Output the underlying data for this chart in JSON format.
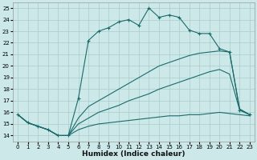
{
  "xlabel": "Humidex (Indice chaleur)",
  "xlim": [
    -0.5,
    23.5
  ],
  "ylim": [
    13.5,
    25.5
  ],
  "xticks": [
    0,
    1,
    2,
    3,
    4,
    5,
    6,
    7,
    8,
    9,
    10,
    11,
    12,
    13,
    14,
    15,
    16,
    17,
    18,
    19,
    20,
    21,
    22,
    23
  ],
  "yticks": [
    14,
    15,
    16,
    17,
    18,
    19,
    20,
    21,
    22,
    23,
    24,
    25
  ],
  "bg_color": "#cce8e8",
  "grid_color": "#aacccc",
  "line_color": "#1a6b6b",
  "line1_x": [
    0,
    1,
    2,
    3,
    4,
    5,
    6,
    7,
    8,
    9,
    10,
    11,
    12,
    13,
    14,
    15,
    16,
    17,
    18,
    19,
    20,
    21,
    22,
    23
  ],
  "line1_y": [
    15.8,
    15.1,
    14.8,
    14.5,
    14.0,
    14.0,
    17.2,
    22.2,
    23.0,
    23.3,
    23.8,
    24.0,
    23.5,
    25.0,
    24.2,
    24.4,
    24.2,
    23.1,
    22.8,
    22.8,
    21.5,
    21.2,
    16.2,
    15.8
  ],
  "line2_x": [
    0,
    1,
    2,
    3,
    4,
    5,
    6,
    7,
    8,
    9,
    10,
    11,
    12,
    13,
    14,
    15,
    16,
    17,
    18,
    19,
    20,
    21,
    22,
    23
  ],
  "line2_y": [
    15.8,
    15.1,
    14.8,
    14.5,
    14.0,
    14.0,
    15.5,
    16.5,
    17.0,
    17.5,
    18.0,
    18.5,
    19.0,
    19.5,
    20.0,
    20.3,
    20.6,
    20.9,
    21.1,
    21.2,
    21.3,
    21.2,
    16.3,
    15.8
  ],
  "line3_x": [
    0,
    1,
    2,
    3,
    4,
    5,
    6,
    7,
    8,
    9,
    10,
    11,
    12,
    13,
    14,
    15,
    16,
    17,
    18,
    19,
    20,
    21,
    22,
    23
  ],
  "line3_y": [
    15.8,
    15.1,
    14.8,
    14.5,
    14.0,
    14.0,
    15.0,
    15.5,
    16.0,
    16.3,
    16.6,
    17.0,
    17.3,
    17.6,
    18.0,
    18.3,
    18.6,
    18.9,
    19.2,
    19.5,
    19.7,
    19.3,
    16.2,
    15.8
  ],
  "line4_x": [
    0,
    1,
    2,
    3,
    4,
    5,
    6,
    7,
    8,
    9,
    10,
    11,
    12,
    13,
    14,
    15,
    16,
    17,
    18,
    19,
    20,
    21,
    22,
    23
  ],
  "line4_y": [
    15.8,
    15.1,
    14.8,
    14.5,
    14.0,
    14.0,
    14.5,
    14.8,
    15.0,
    15.1,
    15.2,
    15.3,
    15.4,
    15.5,
    15.6,
    15.7,
    15.7,
    15.8,
    15.8,
    15.9,
    16.0,
    15.9,
    15.8,
    15.7
  ]
}
